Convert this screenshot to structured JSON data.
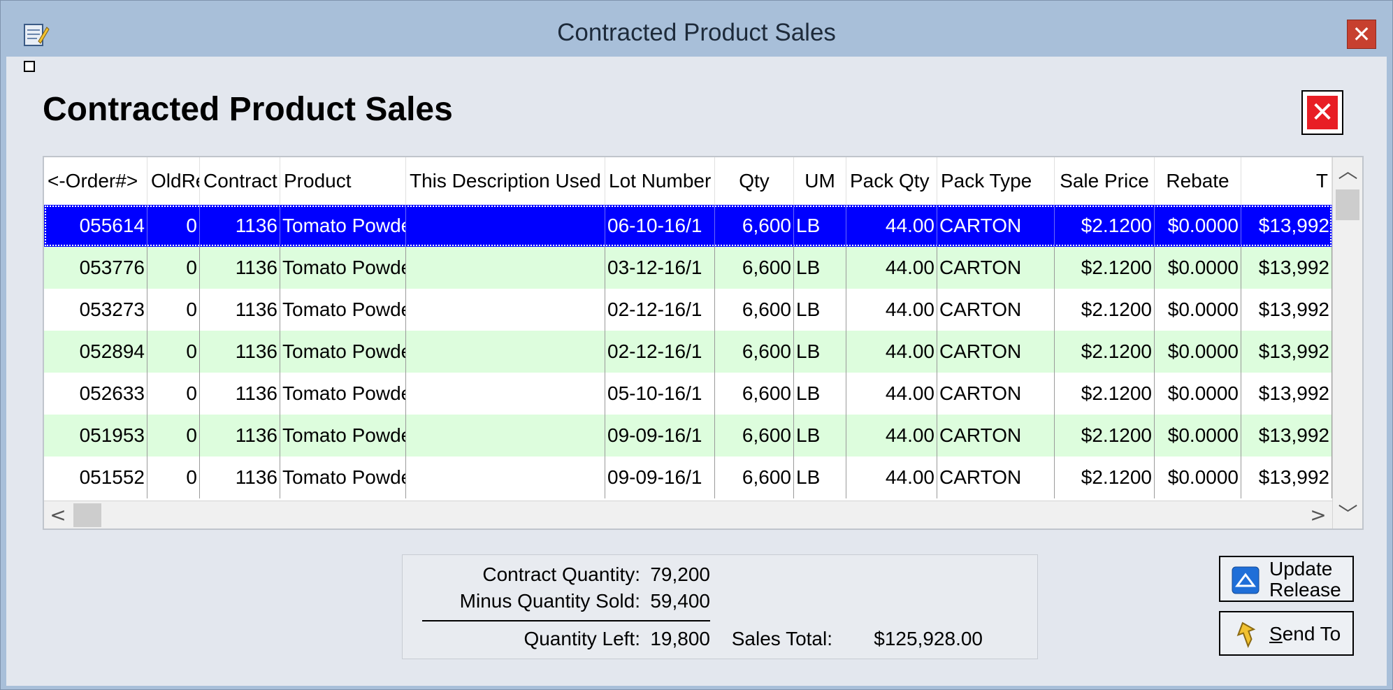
{
  "window": {
    "title": "Contracted Product Sales",
    "close_symbol": "✕"
  },
  "page": {
    "heading": "Contracted Product Sales",
    "close_symbol": "✕"
  },
  "grid": {
    "columns": [
      "<-Order#>",
      "OldRe",
      "Contract",
      "Product",
      "This Description Used",
      "Lot Number",
      "Qty",
      "UM",
      "Pack Qty",
      "Pack Type",
      "Sale Price",
      "Rebate",
      "T"
    ],
    "rows": [
      {
        "order": "055614",
        "oldre": "0",
        "contract": "1136",
        "product": "Tomato Powde",
        "desc": "",
        "lot": "06-10-16/1",
        "qty": "6,600",
        "um": "LB",
        "packqty": "44.00",
        "packtype": "CARTON",
        "price": "$2.1200",
        "rebate": "$0.0000",
        "total": "$13,992"
      },
      {
        "order": "053776",
        "oldre": "0",
        "contract": "1136",
        "product": "Tomato Powde",
        "desc": "",
        "lot": "03-12-16/1",
        "qty": "6,600",
        "um": "LB",
        "packqty": "44.00",
        "packtype": "CARTON",
        "price": "$2.1200",
        "rebate": "$0.0000",
        "total": "$13,992"
      },
      {
        "order": "053273",
        "oldre": "0",
        "contract": "1136",
        "product": "Tomato Powde",
        "desc": "",
        "lot": "02-12-16/1",
        "qty": "6,600",
        "um": "LB",
        "packqty": "44.00",
        "packtype": "CARTON",
        "price": "$2.1200",
        "rebate": "$0.0000",
        "total": "$13,992"
      },
      {
        "order": "052894",
        "oldre": "0",
        "contract": "1136",
        "product": "Tomato Powde",
        "desc": "",
        "lot": "02-12-16/1",
        "qty": "6,600",
        "um": "LB",
        "packqty": "44.00",
        "packtype": "CARTON",
        "price": "$2.1200",
        "rebate": "$0.0000",
        "total": "$13,992"
      },
      {
        "order": "052633",
        "oldre": "0",
        "contract": "1136",
        "product": "Tomato Powde",
        "desc": "",
        "lot": "05-10-16/1",
        "qty": "6,600",
        "um": "LB",
        "packqty": "44.00",
        "packtype": "CARTON",
        "price": "$2.1200",
        "rebate": "$0.0000",
        "total": "$13,992"
      },
      {
        "order": "051953",
        "oldre": "0",
        "contract": "1136",
        "product": "Tomato Powde",
        "desc": "",
        "lot": "09-09-16/1",
        "qty": "6,600",
        "um": "LB",
        "packqty": "44.00",
        "packtype": "CARTON",
        "price": "$2.1200",
        "rebate": "$0.0000",
        "total": "$13,992"
      },
      {
        "order": "051552",
        "oldre": "0",
        "contract": "1136",
        "product": "Tomato Powde",
        "desc": "",
        "lot": "09-09-16/1",
        "qty": "6,600",
        "um": "LB",
        "packqty": "44.00",
        "packtype": "CARTON",
        "price": "$2.1200",
        "rebate": "$0.0000",
        "total": "$13,992"
      }
    ],
    "scroll": {
      "up": "▲",
      "down": "▼",
      "left": "<",
      "right": ">"
    }
  },
  "summary": {
    "contract_qty_label": "Contract Quantity:",
    "contract_qty_value": "79,200",
    "minus_sold_label": "Minus Quantity Sold:",
    "minus_sold_value": "59,400",
    "qty_left_label": "Quantity Left:",
    "qty_left_value": "19,800",
    "sales_total_label": "Sales Total:",
    "sales_total_value": "$125,928.00"
  },
  "buttons": {
    "update_release_line1": "Update",
    "update_release_line2": "Release",
    "send_to_label": "Send To",
    "send_to_mnemonic": "S",
    "send_to_rest": "end To"
  },
  "colors": {
    "selected_row": "#0000ff",
    "alt_row": "#ddfddd",
    "title_close": "#c7402f",
    "page_close": "#e81e25"
  },
  "icons": {
    "app": "notepad-icon",
    "update": "up-arrow-icon",
    "send": "send-arrow-icon"
  }
}
